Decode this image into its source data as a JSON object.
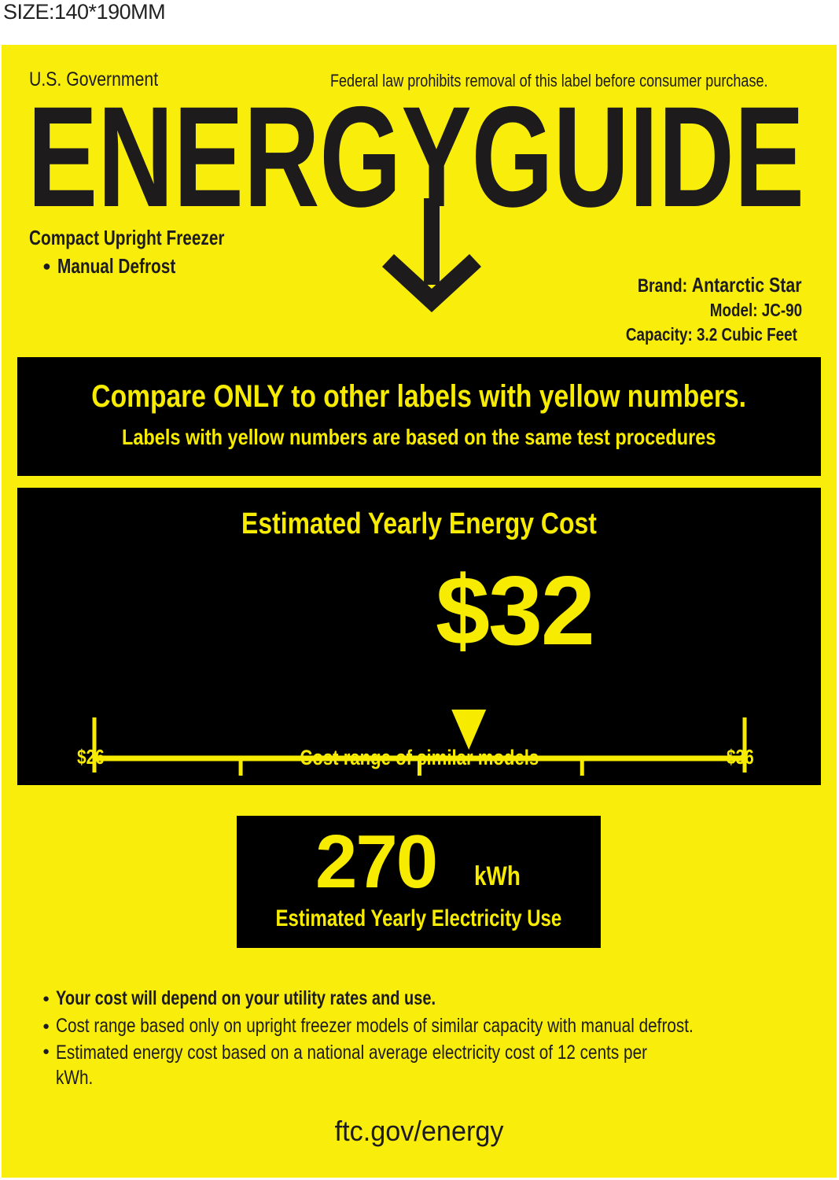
{
  "header_note": "SIZE:140*190MM",
  "label": {
    "government": "U.S. Government",
    "legal_notice": "Federal law prohibits removal of this label before consumer purchase.",
    "title": "ENERGYGUIDE",
    "product_type": "Compact Upright Freezer",
    "features": [
      "Manual Defrost"
    ],
    "brand_label": "Brand:",
    "brand": "Antarctic Star",
    "model_label": "Model:",
    "model": "JC-90",
    "capacity_label": "Capacity:",
    "capacity": "3.2 Cubic Feet",
    "compare_heading": "Compare ONLY to other labels with yellow numbers.",
    "compare_sub": "Labels with yellow numbers are based on the same test procedures",
    "cost_heading": "Estimated Yearly Energy Cost",
    "cost_value": "$32",
    "cost_number": 32,
    "range_min_label": "$26",
    "range_max_label": "$36",
    "range_min": 26,
    "range_max": 36,
    "range_caption": "Cost range of similar models",
    "kwh_value": "270",
    "kwh_unit": "kWh",
    "kwh_caption": "Estimated Yearly Electricity Use",
    "notes": [
      "Your cost will depend on your utility rates and use.",
      "Cost range based only on upright freezer models of similar capacity with manual defrost.",
      "Estimated energy cost based on a national average electricity cost of 12 cents per kWh."
    ],
    "website": "ftc.gov/energy"
  },
  "colors": {
    "label_yellow": "#f9ee0b",
    "text_yellow": "#f7ec00",
    "ink": "#1d1b1b"
  }
}
